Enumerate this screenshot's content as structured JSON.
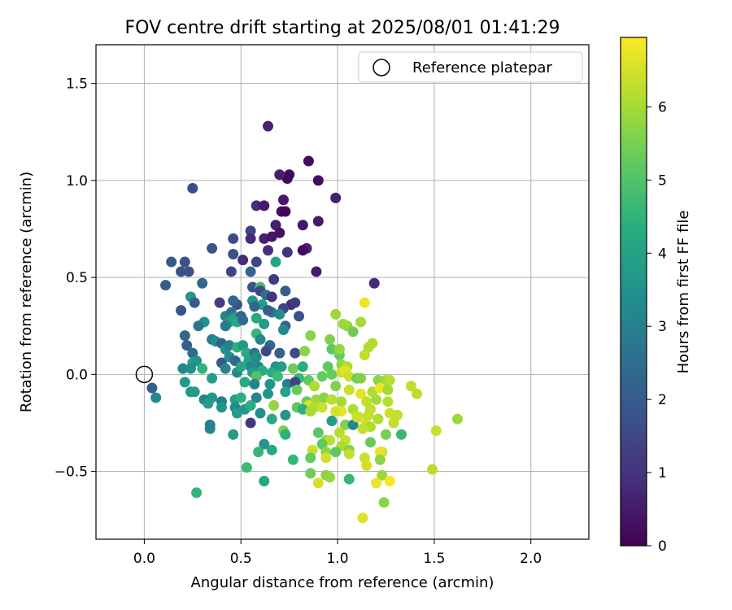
{
  "chart_data": {
    "type": "scatter",
    "title": "FOV centre drift starting at 2025/08/01 01:41:29",
    "xlabel": "Angular distance from reference (arcmin)",
    "ylabel": "Rotation from reference (arcmin)",
    "xlim": [
      -0.25,
      2.3
    ],
    "ylim": [
      -0.85,
      1.7
    ],
    "xticks": [
      0.0,
      0.5,
      1.0,
      1.5,
      2.0
    ],
    "xtick_labels": [
      "0.0",
      "0.5",
      "1.0",
      "1.5",
      "2.0"
    ],
    "yticks": [
      -0.5,
      0.0,
      0.5,
      1.0,
      1.5
    ],
    "ytick_labels": [
      "−0.5",
      "0.0",
      "0.5",
      "1.0",
      "1.5"
    ],
    "grid": true,
    "legend": {
      "position": "top-right",
      "entries": [
        "Reference platepar"
      ]
    },
    "reference": {
      "x": 0.0,
      "y": 0.0
    },
    "colorbar": {
      "label": "Hours from first FF file",
      "range": [
        0,
        6.95
      ],
      "ticks": [
        0,
        1,
        2,
        3,
        4,
        5,
        6
      ],
      "tick_labels": [
        "0",
        "1",
        "2",
        "3",
        "4",
        "5",
        "6"
      ],
      "colormap": "viridis"
    },
    "points": [
      [
        0.64,
        1.28,
        0.7
      ],
      [
        0.85,
        1.1,
        0.2
      ],
      [
        0.75,
        1.03,
        0.2
      ],
      [
        0.74,
        1.01,
        0.1
      ],
      [
        0.7,
        1.03,
        0.6
      ],
      [
        0.9,
        1.0,
        0.2
      ],
      [
        0.99,
        0.91,
        0.6
      ],
      [
        0.25,
        0.96,
        1.6
      ],
      [
        0.58,
        0.87,
        0.8
      ],
      [
        0.62,
        0.87,
        0.5
      ],
      [
        0.71,
        0.84,
        0.3
      ],
      [
        0.73,
        0.84,
        0.1
      ],
      [
        0.72,
        0.9,
        0.5
      ],
      [
        0.68,
        0.77,
        0.6
      ],
      [
        0.7,
        0.73,
        0.3
      ],
      [
        0.82,
        0.77,
        0.4
      ],
      [
        0.9,
        0.79,
        0.5
      ],
      [
        0.55,
        0.74,
        1.4
      ],
      [
        0.55,
        0.7,
        0.8
      ],
      [
        0.62,
        0.7,
        0.6
      ],
      [
        0.46,
        0.7,
        1.6
      ],
      [
        0.66,
        0.71,
        0.4
      ],
      [
        0.35,
        0.65,
        1.8
      ],
      [
        0.84,
        0.65,
        0.7
      ],
      [
        0.82,
        0.64,
        0.2
      ],
      [
        0.64,
        0.64,
        0.9
      ],
      [
        0.74,
        0.63,
        1.0
      ],
      [
        0.14,
        0.58,
        1.9
      ],
      [
        0.21,
        0.58,
        1.7
      ],
      [
        0.19,
        0.53,
        1.7
      ],
      [
        0.23,
        0.53,
        1.7
      ],
      [
        0.46,
        0.62,
        1.7
      ],
      [
        0.58,
        0.58,
        1.4
      ],
      [
        0.68,
        0.58,
        4.1
      ],
      [
        0.51,
        0.59,
        0.8
      ],
      [
        0.45,
        0.53,
        1.4
      ],
      [
        0.89,
        0.53,
        0.5
      ],
      [
        0.55,
        0.53,
        2.2
      ],
      [
        1.19,
        0.47,
        0.8
      ],
      [
        0.11,
        0.46,
        2.0
      ],
      [
        0.3,
        0.47,
        2.3
      ],
      [
        0.56,
        0.45,
        1.8
      ],
      [
        0.67,
        0.49,
        1.2
      ],
      [
        0.6,
        0.45,
        4.8
      ],
      [
        0.6,
        0.43,
        1.5
      ],
      [
        0.73,
        0.43,
        2.0
      ],
      [
        0.63,
        0.41,
        2.5
      ],
      [
        0.66,
        0.4,
        1.1
      ],
      [
        0.24,
        0.4,
        3.7
      ],
      [
        0.26,
        0.37,
        2.0
      ],
      [
        0.39,
        0.37,
        1.3
      ],
      [
        0.48,
        0.36,
        1.8
      ],
      [
        0.56,
        0.38,
        3.6
      ],
      [
        0.61,
        0.36,
        3.8
      ],
      [
        0.76,
        0.36,
        0.9
      ],
      [
        0.78,
        0.37,
        1.2
      ],
      [
        0.19,
        0.33,
        1.8
      ],
      [
        0.46,
        0.38,
        2.3
      ],
      [
        0.57,
        0.35,
        2.3
      ],
      [
        0.66,
        0.32,
        2.9
      ],
      [
        0.64,
        0.33,
        2.0
      ],
      [
        0.72,
        0.34,
        1.5
      ],
      [
        0.42,
        0.3,
        3.1
      ],
      [
        0.45,
        0.32,
        2.6
      ],
      [
        0.46,
        0.29,
        3.8
      ],
      [
        0.5,
        0.3,
        2.2
      ],
      [
        0.58,
        0.29,
        4.2
      ],
      [
        0.7,
        0.31,
        3.3
      ],
      [
        0.8,
        0.3,
        1.7
      ],
      [
        0.99,
        0.31,
        5.9
      ],
      [
        0.31,
        0.27,
        3.5
      ],
      [
        0.44,
        0.27,
        3.8
      ],
      [
        0.48,
        0.27,
        4.2
      ],
      [
        0.51,
        0.28,
        2.4
      ],
      [
        0.28,
        0.25,
        2.7
      ],
      [
        0.42,
        0.25,
        2.9
      ],
      [
        0.62,
        0.26,
        3.8
      ],
      [
        0.73,
        0.25,
        2.1
      ],
      [
        0.72,
        0.23,
        3.3
      ],
      [
        1.05,
        0.25,
        5.8
      ],
      [
        1.08,
        0.22,
        5.4
      ],
      [
        1.12,
        0.27,
        6.0
      ],
      [
        1.03,
        0.26,
        5.9
      ],
      [
        0.21,
        0.2,
        2.3
      ],
      [
        0.35,
        0.18,
        2.9
      ],
      [
        0.37,
        0.17,
        3.4
      ],
      [
        0.58,
        0.21,
        4.6
      ],
      [
        0.6,
        0.18,
        3.2
      ],
      [
        0.65,
        0.15,
        2.3
      ],
      [
        0.86,
        0.2,
        5.7
      ],
      [
        0.96,
        0.18,
        5.6
      ],
      [
        1.18,
        0.16,
        6.1
      ],
      [
        1.16,
        0.14,
        6.1
      ],
      [
        1.14,
        0.1,
        6.3
      ],
      [
        1.14,
        0.37,
        6.8
      ],
      [
        0.22,
        0.15,
        2.1
      ],
      [
        0.4,
        0.16,
        2.2
      ],
      [
        0.42,
        0.13,
        3.5
      ],
      [
        0.44,
        0.15,
        3.0
      ],
      [
        0.48,
        0.14,
        4.4
      ],
      [
        0.51,
        0.15,
        3.7
      ],
      [
        0.53,
        0.11,
        4.2
      ],
      [
        0.57,
        0.11,
        2.5
      ],
      [
        0.63,
        0.12,
        1.5
      ],
      [
        0.7,
        0.11,
        2.1
      ],
      [
        0.78,
        0.11,
        1.6
      ],
      [
        0.83,
        0.12,
        5.7
      ],
      [
        0.97,
        0.13,
        5.2
      ],
      [
        1.01,
        0.1,
        5.3
      ],
      [
        1.01,
        0.13,
        5.8
      ],
      [
        0.25,
        0.11,
        2.4
      ],
      [
        0.25,
        0.06,
        4.2
      ],
      [
        0.27,
        0.07,
        3.6
      ],
      [
        0.4,
        0.06,
        2.0
      ],
      [
        0.44,
        0.09,
        3.4
      ],
      [
        0.47,
        0.07,
        2.3
      ],
      [
        0.54,
        0.07,
        4.0
      ],
      [
        0.56,
        0.06,
        4.0
      ],
      [
        0.58,
        0.09,
        3.4
      ],
      [
        0.55,
        0.04,
        3.1
      ],
      [
        0.59,
        0.04,
        3.2
      ],
      [
        0.61,
        0.02,
        4.3
      ],
      [
        0.68,
        0.04,
        3.5
      ],
      [
        0.71,
        0.04,
        3.9
      ],
      [
        0.77,
        0.03,
        5.4
      ],
      [
        0.82,
        0.04,
        4.3
      ],
      [
        0.95,
        0.04,
        5.2
      ],
      [
        1.02,
        0.05,
        5.8
      ],
      [
        1.05,
        0.04,
        6.1
      ],
      [
        0.2,
        0.03,
        3.2
      ],
      [
        0.24,
        0.03,
        3.4
      ],
      [
        0.3,
        0.03,
        4.5
      ],
      [
        0.42,
        0.03,
        3.1
      ],
      [
        0.48,
        0.01,
        3.3
      ],
      [
        0.5,
        0.04,
        4.1
      ],
      [
        0.56,
        0.01,
        3.8
      ],
      [
        0.58,
        -0.01,
        5.0
      ],
      [
        0.66,
        0.01,
        4.3
      ],
      [
        0.69,
        -0.01,
        4.7
      ],
      [
        0.8,
        -0.02,
        4.6
      ],
      [
        0.92,
        -0.01,
        5.3
      ],
      [
        0.97,
        0.0,
        5.3
      ],
      [
        1.02,
        0.01,
        6.4
      ],
      [
        1.04,
        0.02,
        6.6
      ],
      [
        1.06,
        -0.01,
        6.4
      ],
      [
        1.1,
        -0.02,
        5.4
      ],
      [
        1.12,
        -0.02,
        5.6
      ],
      [
        1.21,
        -0.03,
        5.7
      ],
      [
        1.25,
        -0.03,
        5.9
      ],
      [
        1.27,
        -0.03,
        6.2
      ],
      [
        1.38,
        -0.06,
        6.3
      ],
      [
        0.21,
        -0.04,
        3.7
      ],
      [
        0.35,
        -0.02,
        3.8
      ],
      [
        0.52,
        -0.04,
        4.2
      ],
      [
        0.57,
        -0.05,
        3.1
      ],
      [
        0.65,
        -0.05,
        3.6
      ],
      [
        0.74,
        -0.05,
        3.0
      ],
      [
        0.78,
        -0.04,
        1.4
      ],
      [
        0.85,
        -0.03,
        5.2
      ],
      [
        0.88,
        -0.06,
        6.1
      ],
      [
        0.99,
        -0.06,
        5.6
      ],
      [
        1.06,
        -0.08,
        6.4
      ],
      [
        1.18,
        -0.09,
        6.1
      ],
      [
        1.22,
        -0.07,
        6.8
      ],
      [
        1.26,
        -0.08,
        6.0
      ],
      [
        1.41,
        -0.1,
        6.2
      ],
      [
        0.04,
        -0.07,
        2.1
      ],
      [
        0.06,
        -0.12,
        3.3
      ],
      [
        0.24,
        -0.09,
        3.7
      ],
      [
        0.26,
        -0.09,
        3.8
      ],
      [
        0.35,
        -0.12,
        3.7
      ],
      [
        0.4,
        -0.14,
        2.9
      ],
      [
        0.47,
        -0.13,
        3.9
      ],
      [
        0.5,
        -0.12,
        4.4
      ],
      [
        0.58,
        -0.12,
        3.1
      ],
      [
        0.64,
        -0.1,
        3.6
      ],
      [
        0.73,
        -0.09,
        4.0
      ],
      [
        0.79,
        -0.08,
        5.3
      ],
      [
        0.84,
        -0.14,
        5.3
      ],
      [
        0.89,
        -0.13,
        5.9
      ],
      [
        0.93,
        -0.12,
        5.7
      ],
      [
        0.97,
        -0.13,
        6.2
      ],
      [
        1.02,
        -0.14,
        6.0
      ],
      [
        1.12,
        -0.1,
        6.7
      ],
      [
        1.15,
        -0.14,
        6.3
      ],
      [
        1.2,
        -0.13,
        6.0
      ],
      [
        1.26,
        -0.14,
        6.2
      ],
      [
        0.31,
        -0.13,
        3.2
      ],
      [
        0.33,
        -0.15,
        3.8
      ],
      [
        0.4,
        -0.17,
        3.6
      ],
      [
        0.47,
        -0.17,
        3.4
      ],
      [
        0.52,
        -0.18,
        3.7
      ],
      [
        0.55,
        -0.16,
        4.3
      ],
      [
        0.67,
        -0.16,
        5.8
      ],
      [
        0.79,
        -0.17,
        5.2
      ],
      [
        0.85,
        -0.16,
        6.6
      ],
      [
        0.88,
        -0.17,
        6.1
      ],
      [
        0.92,
        -0.17,
        6.4
      ],
      [
        1.02,
        -0.19,
        6.7
      ],
      [
        1.08,
        -0.18,
        6.1
      ],
      [
        1.17,
        -0.18,
        6.3
      ],
      [
        1.27,
        -0.2,
        6.4
      ],
      [
        1.31,
        -0.21,
        6.3
      ],
      [
        0.48,
        -0.2,
        3.8
      ],
      [
        0.6,
        -0.2,
        3.4
      ],
      [
        0.73,
        -0.21,
        3.6
      ],
      [
        0.82,
        -0.18,
        4.4
      ],
      [
        0.86,
        -0.19,
        6.0
      ],
      [
        0.99,
        -0.19,
        6.5
      ],
      [
        1.11,
        -0.22,
        6.3
      ],
      [
        1.14,
        -0.23,
        6.6
      ],
      [
        1.16,
        -0.21,
        6.3
      ],
      [
        1.21,
        -0.23,
        6.1
      ],
      [
        1.29,
        -0.25,
        6.3
      ],
      [
        1.62,
        -0.23,
        5.9
      ],
      [
        0.55,
        -0.25,
        1.1
      ],
      [
        0.66,
        -0.23,
        4.2
      ],
      [
        0.97,
        -0.24,
        3.9
      ],
      [
        1.04,
        -0.26,
        5.6
      ],
      [
        1.08,
        -0.26,
        3.2
      ],
      [
        1.1,
        -0.22,
        6.4
      ],
      [
        1.15,
        -0.26,
        6.4
      ],
      [
        1.17,
        -0.27,
        6.1
      ],
      [
        1.51,
        -0.29,
        6.4
      ],
      [
        0.34,
        -0.26,
        3.0
      ],
      [
        0.34,
        -0.28,
        3.1
      ],
      [
        0.72,
        -0.29,
        5.6
      ],
      [
        0.73,
        -0.31,
        4.4
      ],
      [
        0.9,
        -0.3,
        5.1
      ],
      [
        1.01,
        -0.3,
        6.2
      ],
      [
        1.13,
        -0.28,
        6.3
      ],
      [
        1.25,
        -0.31,
        5.5
      ],
      [
        1.33,
        -0.31,
        4.6
      ],
      [
        0.46,
        -0.31,
        3.8
      ],
      [
        0.94,
        -0.34,
        5.8
      ],
      [
        0.96,
        -0.34,
        6.2
      ],
      [
        1.04,
        -0.34,
        6.4
      ],
      [
        1.17,
        -0.35,
        5.3
      ],
      [
        0.62,
        -0.36,
        3.6
      ],
      [
        0.92,
        -0.36,
        5.2
      ],
      [
        1.02,
        -0.37,
        6.1
      ],
      [
        1.06,
        -0.39,
        5.6
      ],
      [
        0.59,
        -0.4,
        4.6
      ],
      [
        0.66,
        -0.39,
        4.2
      ],
      [
        0.87,
        -0.39,
        6.4
      ],
      [
        0.94,
        -0.4,
        5.7
      ],
      [
        0.99,
        -0.4,
        5.2
      ],
      [
        1.23,
        -0.4,
        6.3
      ],
      [
        1.22,
        -0.4,
        6.7
      ],
      [
        0.77,
        -0.44,
        4.6
      ],
      [
        0.86,
        -0.43,
        5.3
      ],
      [
        0.94,
        -0.43,
        6.5
      ],
      [
        1.06,
        -0.41,
        6.3
      ],
      [
        1.14,
        -0.43,
        6.4
      ],
      [
        1.22,
        -0.44,
        5.7
      ],
      [
        0.53,
        -0.48,
        4.7
      ],
      [
        1.15,
        -0.47,
        6.5
      ],
      [
        1.49,
        -0.49,
        6.2
      ],
      [
        0.86,
        -0.51,
        5.4
      ],
      [
        0.94,
        -0.52,
        5.7
      ],
      [
        0.96,
        -0.53,
        5.8
      ],
      [
        1.06,
        -0.54,
        4.6
      ],
      [
        1.23,
        -0.52,
        5.9
      ],
      [
        0.62,
        -0.55,
        4.1
      ],
      [
        0.9,
        -0.56,
        6.5
      ],
      [
        1.2,
        -0.56,
        6.8
      ],
      [
        1.27,
        -0.55,
        6.9
      ],
      [
        0.27,
        -0.61,
        4.5
      ],
      [
        1.24,
        -0.66,
        5.7
      ],
      [
        1.13,
        -0.74,
        6.6
      ]
    ]
  }
}
